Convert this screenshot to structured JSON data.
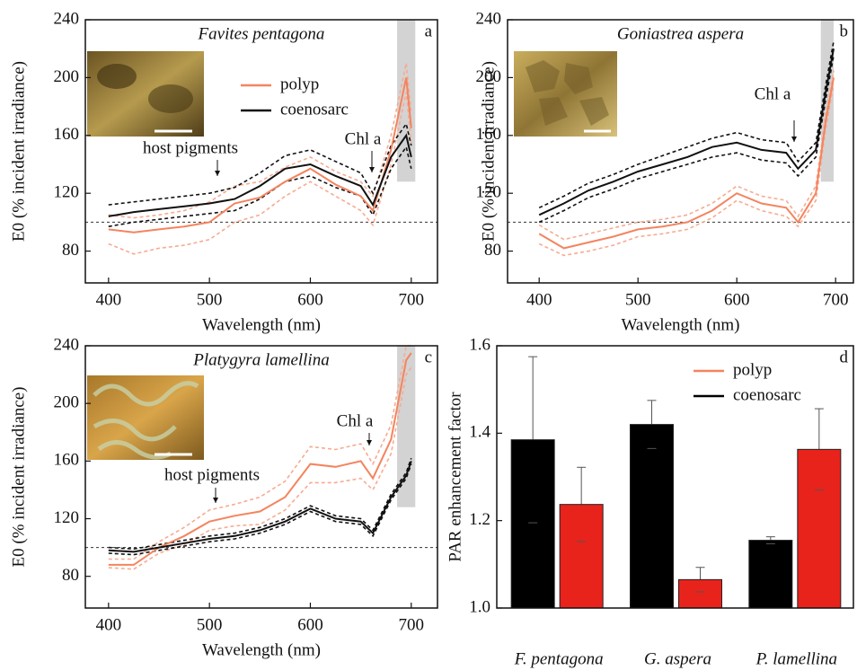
{
  "chart_data": [
    {
      "type": "line",
      "title": "Favites pentagona",
      "panel": "a",
      "x_label": "Wavelength (nm)",
      "y_label": "E0 (% incident irradiance)",
      "xlim": [
        377,
        726
      ],
      "ylim": [
        58,
        240
      ],
      "xticks": [
        400,
        500,
        600,
        700
      ],
      "yticks": [
        80,
        120,
        160,
        200,
        240
      ],
      "ref_line": 100,
      "highlight": {
        "x": [
          686,
          704
        ],
        "y": [
          128,
          240
        ]
      },
      "legend": true,
      "annotations": [
        "host pigments",
        "Chl a"
      ],
      "x": [
        400,
        425,
        450,
        475,
        500,
        525,
        550,
        575,
        600,
        625,
        650,
        662,
        680,
        695,
        700
      ],
      "series": [
        {
          "name": "polyp",
          "color": "#f4845f",
          "band_color": "#f7ab90",
          "values": [
            95,
            93,
            95,
            97,
            100,
            113,
            117,
            128,
            137,
            126,
            118,
            108,
            150,
            200,
            165
          ],
          "lower": [
            85,
            78,
            82,
            84,
            88,
            100,
            105,
            118,
            128,
            118,
            108,
            98,
            140,
            190,
            155
          ],
          "upper": [
            105,
            103,
            105,
            108,
            114,
            125,
            128,
            138,
            145,
            135,
            128,
            118,
            160,
            210,
            175
          ]
        },
        {
          "name": "coenosarc",
          "color": "#111111",
          "band_color": "#111111",
          "values": [
            104,
            107,
            109,
            111,
            113,
            116,
            125,
            137,
            140,
            132,
            125,
            112,
            145,
            160,
            145
          ],
          "lower": [
            97,
            100,
            102,
            104,
            106,
            108,
            116,
            128,
            132,
            124,
            118,
            105,
            137,
            152,
            137
          ],
          "upper": [
            112,
            114,
            116,
            118,
            120,
            124,
            134,
            146,
            150,
            142,
            134,
            120,
            153,
            168,
            153
          ]
        }
      ]
    },
    {
      "type": "line",
      "title": "Goniastrea aspera",
      "panel": "b",
      "x_label": "Wavelength (nm)",
      "y_label": "E0 (% incident irradiance)",
      "xlim": [
        368,
        718
      ],
      "ylim": [
        58,
        240
      ],
      "xticks": [
        400,
        500,
        600,
        700
      ],
      "yticks": [
        80,
        120,
        160,
        200,
        240
      ],
      "ref_line": 100,
      "highlight": {
        "x": [
          685,
          698
        ],
        "y": [
          128,
          240
        ]
      },
      "legend": false,
      "annotations": [
        "Chl a"
      ],
      "x": [
        400,
        425,
        450,
        475,
        500,
        525,
        550,
        575,
        600,
        625,
        650,
        662,
        680,
        690,
        698
      ],
      "series": [
        {
          "color": "#f4845f",
          "band_color": "#f7ab90",
          "values": [
            92,
            82,
            86,
            90,
            95,
            97,
            100,
            108,
            120,
            113,
            110,
            100,
            120,
            170,
            200
          ],
          "lower": [
            85,
            77,
            80,
            84,
            90,
            92,
            95,
            103,
            115,
            108,
            104,
            97,
            115,
            165,
            195
          ],
          "upper": [
            98,
            88,
            92,
            96,
            100,
            102,
            105,
            113,
            125,
            118,
            115,
            104,
            125,
            175,
            205
          ]
        },
        {
          "color": "#111111",
          "band_color": "#111111",
          "values": [
            105,
            113,
            122,
            128,
            135,
            140,
            145,
            152,
            155,
            150,
            148,
            137,
            150,
            190,
            220
          ],
          "lower": [
            100,
            108,
            117,
            123,
            130,
            135,
            140,
            145,
            148,
            143,
            141,
            132,
            145,
            185,
            215
          ],
          "upper": [
            110,
            118,
            127,
            133,
            140,
            146,
            152,
            158,
            162,
            157,
            155,
            142,
            155,
            195,
            225
          ]
        }
      ]
    },
    {
      "type": "line",
      "title": "Platygyra lamellina",
      "panel": "c",
      "x_label": "Wavelength (nm)",
      "y_label": "E0 (% incident irradiance)",
      "xlim": [
        377,
        726
      ],
      "ylim": [
        58,
        240
      ],
      "xticks": [
        400,
        500,
        600,
        700
      ],
      "yticks": [
        80,
        120,
        160,
        200,
        240
      ],
      "ref_line": 100,
      "highlight": {
        "x": [
          686,
          704
        ],
        "y": [
          128,
          240
        ]
      },
      "legend": false,
      "annotations": [
        "host pigments",
        "Chl a"
      ],
      "x": [
        400,
        425,
        450,
        475,
        500,
        525,
        550,
        575,
        600,
        625,
        650,
        662,
        680,
        695,
        700
      ],
      "series": [
        {
          "color": "#f4845f",
          "band_color": "#f7ab90",
          "values": [
            88,
            88,
            100,
            108,
            118,
            122,
            125,
            135,
            158,
            156,
            160,
            148,
            175,
            230,
            235
          ],
          "lower": [
            86,
            85,
            96,
            102,
            112,
            115,
            116,
            126,
            145,
            145,
            148,
            140,
            165,
            220,
            225
          ],
          "upper": [
            92,
            92,
            104,
            114,
            126,
            130,
            135,
            146,
            170,
            168,
            172,
            158,
            185,
            240,
            240
          ]
        },
        {
          "color": "#111111",
          "band_color": "#111111",
          "values": [
            98,
            97,
            100,
            103,
            106,
            108,
            112,
            118,
            127,
            120,
            118,
            110,
            135,
            150,
            160
          ],
          "lower": [
            96,
            95,
            98,
            101,
            104,
            106,
            110,
            116,
            125,
            118,
            116,
            108,
            133,
            148,
            158
          ],
          "upper": [
            100,
            99,
            102,
            105,
            108,
            110,
            114,
            120,
            129,
            122,
            120,
            112,
            137,
            152,
            162
          ]
        }
      ]
    },
    {
      "type": "bar",
      "panel": "d",
      "y_label": "PAR enhancement factor",
      "ylim": [
        1.0,
        1.6
      ],
      "yticks": [
        {
          "value": 1.0,
          "label": "1.0"
        },
        1.2,
        1.4,
        1.6
      ],
      "legend": true,
      "categories": [
        "F. pentagona",
        "G. aspera",
        "P. lamellina"
      ],
      "series": [
        {
          "name": "coenosarc",
          "color": "#000000",
          "values": [
            1.385,
            1.42,
            1.155
          ],
          "errors": [
            0.19,
            0.055,
            0.008
          ]
        },
        {
          "name": "polyp",
          "color": "#e8231c",
          "legend_color": "#f4845f",
          "values": [
            1.237,
            1.065,
            1.363
          ],
          "errors": [
            0.085,
            0.028,
            0.093
          ]
        }
      ]
    }
  ]
}
